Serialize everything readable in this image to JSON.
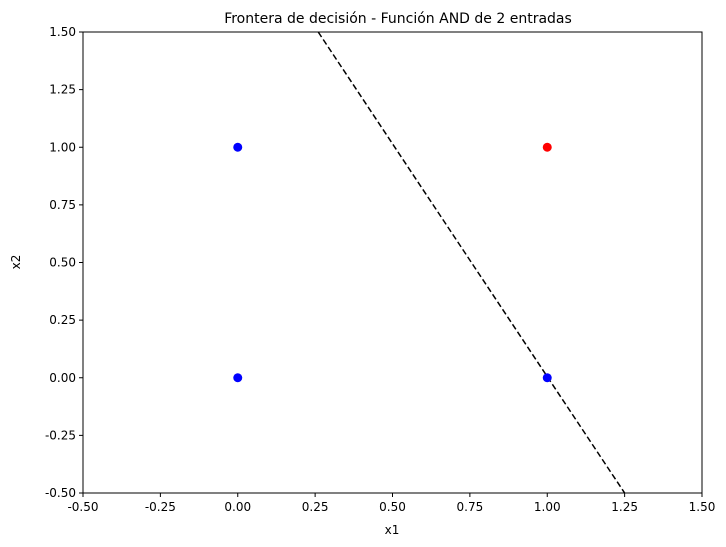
{
  "chart_data": {
    "type": "scatter",
    "title": "Frontera de decisión - Función AND de 2 entradas",
    "xlabel": "x1",
    "ylabel": "x2",
    "xlim": [
      -0.5,
      1.5
    ],
    "ylim": [
      -0.5,
      1.5
    ],
    "xticks": [
      "-0.50",
      "-0.25",
      "0.00",
      "0.25",
      "0.50",
      "0.75",
      "1.00",
      "1.25",
      "1.50"
    ],
    "yticks": [
      "-0.50",
      "-0.25",
      "0.00",
      "0.25",
      "0.50",
      "0.75",
      "1.00",
      "1.25",
      "1.50"
    ],
    "grid": false,
    "points": [
      {
        "x": 0,
        "y": 0,
        "color": "#0000ff"
      },
      {
        "x": 0,
        "y": 1,
        "color": "#0000ff"
      },
      {
        "x": 1,
        "y": 0,
        "color": "#0000ff"
      },
      {
        "x": 1,
        "y": 1,
        "color": "#ff0000"
      }
    ],
    "decision_boundary": {
      "style": "dashed",
      "color": "#000000",
      "points": [
        [
          0.26,
          1.5
        ],
        [
          1.25,
          -0.5
        ]
      ]
    }
  }
}
